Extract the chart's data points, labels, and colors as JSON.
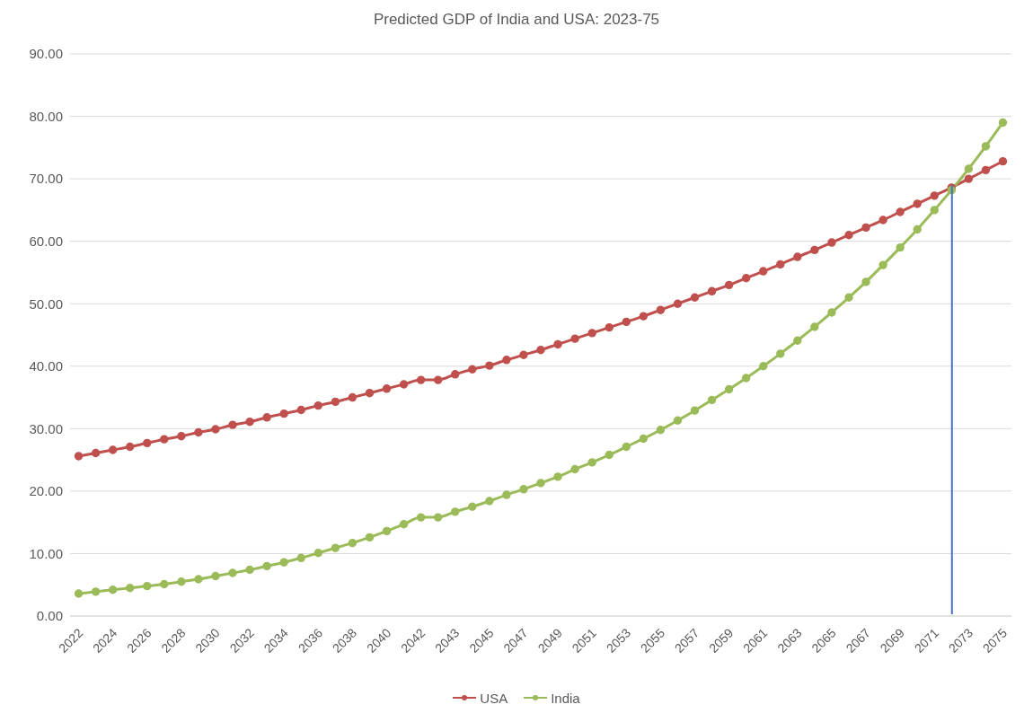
{
  "chart_data": {
    "type": "line",
    "title": "Predicted GDP of India and USA: 2023-75",
    "categories": [
      "2022",
      null,
      "2024",
      null,
      "2026",
      null,
      "2028",
      null,
      "2030",
      null,
      "2032",
      null,
      "2034",
      null,
      "2036",
      null,
      "2038",
      null,
      "2040",
      null,
      "2042",
      null,
      "2043",
      null,
      "2045",
      null,
      "2047",
      null,
      "2049",
      null,
      "2051",
      null,
      "2053",
      null,
      "2055",
      null,
      "2057",
      null,
      "2059",
      null,
      "2061",
      null,
      "2063",
      null,
      "2065",
      null,
      "2067",
      null,
      "2069",
      null,
      "2071",
      null,
      "2073",
      null,
      "2075"
    ],
    "series": [
      {
        "name": "USA",
        "color": "#c0504d",
        "values": [
          25.6,
          26.1,
          26.6,
          27.1,
          27.7,
          28.3,
          28.8,
          29.4,
          29.9,
          30.6,
          31.1,
          31.8,
          32.4,
          33.0,
          33.7,
          34.3,
          35.0,
          35.7,
          36.4,
          37.1,
          37.8,
          37.8,
          38.7,
          39.5,
          40.1,
          41.0,
          41.8,
          42.6,
          43.5,
          44.4,
          45.3,
          46.2,
          47.1,
          48.0,
          49.0,
          50.0,
          51.0,
          52.0,
          53.0,
          54.1,
          55.2,
          56.3,
          57.5,
          58.6,
          59.8,
          61.0,
          62.2,
          63.4,
          64.7,
          66.0,
          67.3,
          68.6,
          70.0,
          71.4,
          72.8
        ]
      },
      {
        "name": "India",
        "color": "#9bbb59",
        "values": [
          3.6,
          3.9,
          4.2,
          4.5,
          4.8,
          5.1,
          5.5,
          5.9,
          6.4,
          6.9,
          7.4,
          8.0,
          8.6,
          9.3,
          10.1,
          10.9,
          11.7,
          12.6,
          13.6,
          14.7,
          15.8,
          15.8,
          16.7,
          17.5,
          18.4,
          19.4,
          20.3,
          21.3,
          22.3,
          23.5,
          24.6,
          25.8,
          27.1,
          28.4,
          29.8,
          31.3,
          32.9,
          34.6,
          36.3,
          38.1,
          40.0,
          42.0,
          44.1,
          46.3,
          48.6,
          51.0,
          53.5,
          56.2,
          59.0,
          61.9,
          65.0,
          68.2,
          71.6,
          75.2,
          79.0
        ]
      },
      {
        "type": "bar",
        "color": "#4472c4",
        "values": [
          null,
          null,
          null,
          null,
          null,
          null,
          null,
          null,
          null,
          null,
          null,
          null,
          null,
          null,
          null,
          null,
          null,
          null,
          null,
          null,
          null,
          null,
          null,
          null,
          null,
          null,
          null,
          null,
          null,
          null,
          null,
          null,
          null,
          null,
          null,
          null,
          null,
          null,
          null,
          null,
          null,
          null,
          null,
          null,
          null,
          null,
          null,
          null,
          null,
          null,
          null,
          68.6,
          null,
          null,
          null
        ]
      }
    ],
    "ylim": [
      0,
      90
    ],
    "yticks": [
      {
        "value": 0,
        "label": "0.00"
      },
      {
        "value": 10,
        "label": "10.00"
      },
      {
        "value": 20,
        "label": "20.00"
      },
      {
        "value": 30,
        "label": "30.00"
      },
      {
        "value": 40,
        "label": "40.00"
      },
      {
        "value": 50,
        "label": "50.00"
      },
      {
        "value": 60,
        "label": "60.00"
      },
      {
        "value": 70,
        "label": "70.00"
      },
      {
        "value": 80,
        "label": "80.00"
      },
      {
        "value": 90,
        "label": "90.00"
      }
    ],
    "grid": "y",
    "legend": "bottom",
    "marker": "circle",
    "line_style": "solid"
  }
}
